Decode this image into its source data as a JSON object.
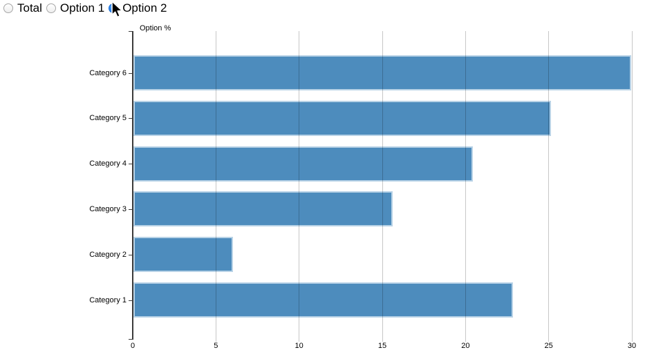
{
  "controls": {
    "radios": [
      {
        "label": "Total",
        "selected": false
      },
      {
        "label": "Option 1",
        "selected": false
      },
      {
        "label": "Option 2",
        "selected": true
      }
    ]
  },
  "chart_data": {
    "type": "bar",
    "orientation": "horizontal",
    "title": "",
    "axis_title": "Option %",
    "order": "top-to-bottom",
    "categories": [
      "Category 6",
      "Category 5",
      "Category 4",
      "Category 3",
      "Category 2",
      "Category 1"
    ],
    "values": [
      29.9,
      25.1,
      20.4,
      15.6,
      6.0,
      22.8
    ],
    "x_ticks": [
      0,
      5,
      10,
      15,
      20,
      25,
      30
    ],
    "xlim": [
      0,
      30
    ],
    "grid": true,
    "colors": {
      "bar_fill": "#4d8cbd",
      "bar_border": "#b9d3e7",
      "grid_line": "rgba(0,0,0,0.22)",
      "axis": "#3a3a3a",
      "text": "#000000"
    }
  },
  "cursor": {
    "visible": true,
    "over": "Option 2 radio"
  }
}
